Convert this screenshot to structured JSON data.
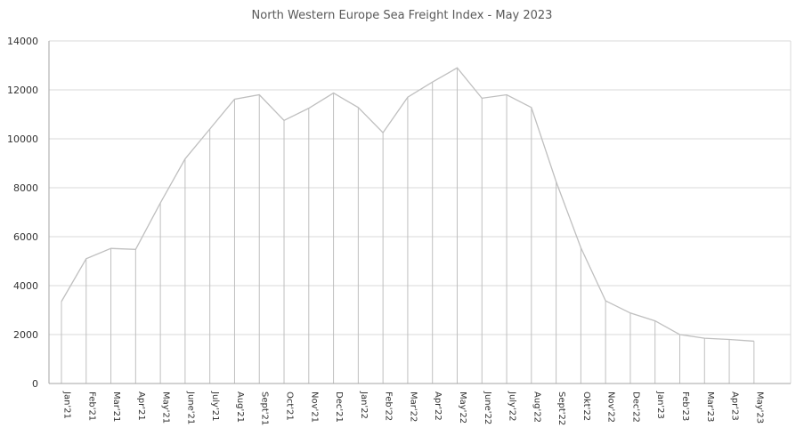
{
  "chart_data": {
    "type": "area",
    "title": "North Western Europe Sea Freight Index - May 2023",
    "xlabel": "",
    "ylabel": "",
    "ylim": [
      0,
      14000
    ],
    "yticks": [
      0,
      2000,
      4000,
      6000,
      8000,
      10000,
      12000,
      14000
    ],
    "grid": true,
    "legend": "none",
    "colors": {
      "line": "#bfbfbf",
      "grid": "#d9d9d9",
      "axis": "#a6a6a6",
      "text": "#595959"
    },
    "categories": [
      "Jan'21",
      "Feb'21",
      "Mar'21",
      "Apr'21",
      "May'21",
      "June'21",
      "July'21",
      "Aug'21",
      "Sept'21",
      "Oct'21",
      "Nov'21",
      "Dec'21",
      "Jan'22",
      "Feb'22",
      "Mar'22",
      "Apr'22",
      "May'22",
      "June'22",
      "July'22",
      "Aug'22",
      "Sept'22",
      "Okt'22",
      "Nov'22",
      "Dec'22",
      "Jan'23",
      "Feb'23",
      "Mar'23",
      "Apr'23",
      "May'23"
    ],
    "values": [
      3350,
      5100,
      5520,
      5480,
      7380,
      9180,
      10400,
      11620,
      11800,
      10750,
      11250,
      11870,
      11280,
      10250,
      11700,
      12320,
      12900,
      11660,
      11800,
      11280,
      8250,
      5550,
      3380,
      2880,
      2560,
      2000,
      1850,
      1800,
      1730
    ]
  }
}
